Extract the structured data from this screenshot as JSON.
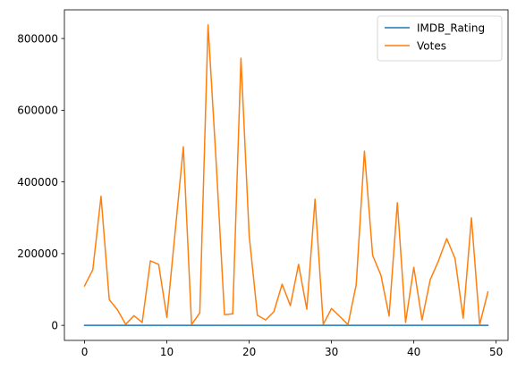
{
  "chart_data": {
    "type": "line",
    "x": [
      0,
      1,
      2,
      3,
      4,
      5,
      6,
      7,
      8,
      9,
      10,
      11,
      12,
      13,
      14,
      15,
      16,
      17,
      18,
      19,
      20,
      21,
      22,
      23,
      24,
      25,
      26,
      27,
      28,
      29,
      30,
      31,
      32,
      33,
      34,
      35,
      36,
      37,
      38,
      39,
      40,
      41,
      42,
      43,
      44,
      45,
      46,
      47,
      48,
      49
    ],
    "series": [
      {
        "name": "IMDB_Rating",
        "color": "#1f77b4",
        "values": [
          8.5,
          8.1,
          8.2,
          7.9,
          7.6,
          8.0,
          7.4,
          8.0,
          7.9,
          7.8,
          7.7,
          8.1,
          8.3,
          7.9,
          7.6,
          8.8,
          8.3,
          7.8,
          7.5,
          8.6,
          7.9,
          7.7,
          8.0,
          7.8,
          7.6,
          8.0,
          7.9,
          7.7,
          8.1,
          7.5,
          7.8,
          7.6,
          7.4,
          7.8,
          8.3,
          7.9,
          7.8,
          7.7,
          8.1,
          7.6,
          7.9,
          7.7,
          7.8,
          7.9,
          8.0,
          7.8,
          7.6,
          8.0,
          7.5,
          7.7
        ]
      },
      {
        "name": "Votes",
        "color": "#ff7f0e",
        "values": [
          110000,
          155000,
          360000,
          72000,
          43000,
          3000,
          27000,
          8000,
          180000,
          170000,
          22000,
          260000,
          498000,
          2000,
          35000,
          838000,
          450000,
          30000,
          32000,
          745000,
          250000,
          28000,
          15000,
          38000,
          115000,
          55000,
          170000,
          45000,
          352000,
          3000,
          47000,
          25000,
          2000,
          113000,
          486000,
          195000,
          140000,
          26000,
          342000,
          8000,
          162000,
          15000,
          128000,
          180000,
          242000,
          187000,
          20000,
          300000,
          2000,
          93000
        ]
      }
    ],
    "xlim": [
      -2.45,
      51.45
    ],
    "ylim": [
      -42000,
      880000
    ],
    "xticks": [
      0,
      10,
      20,
      30,
      40,
      50
    ],
    "yticks": [
      0,
      200000,
      400000,
      600000,
      800000
    ],
    "xtick_labels": [
      "0",
      "10",
      "20",
      "30",
      "40",
      "50"
    ],
    "ytick_labels": [
      "0",
      "200000",
      "400000",
      "600000",
      "800000"
    ],
    "grid": false,
    "legend": "top-right",
    "title": "",
    "xlabel": "",
    "ylabel": ""
  }
}
